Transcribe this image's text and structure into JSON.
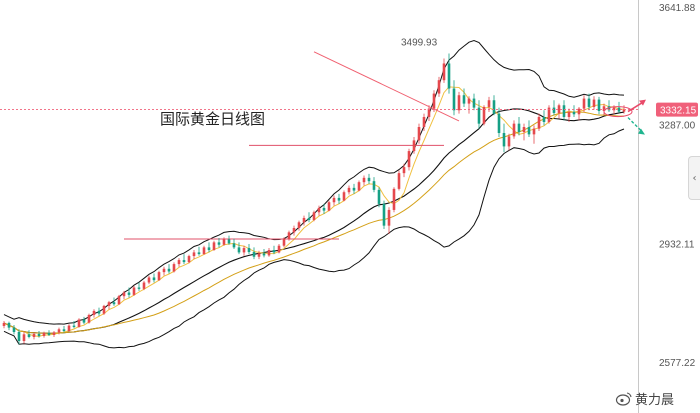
{
  "colors": {
    "up": "#e5484d",
    "down": "#16a085",
    "ma_short": "#f0c040",
    "ma_long": "#d4a017",
    "band": "#111111",
    "trendline": "#f06070",
    "support": "#e0506a",
    "arrow_up": "#e84b6a",
    "arrow_down": "#1fb58f",
    "price_tag": "#f0607a"
  },
  "watermark": "黄力晨",
  "side_button_icon": "chevron-left-icon",
  "chart_data": {
    "type": "candlestick",
    "title": "国际黄金日线图",
    "ylim": [
      2577.22,
      3641.88
    ],
    "y_ticks": [
      "3641.88",
      "3287.00",
      "2932.11",
      "2577.22"
    ],
    "y_tick_values": [
      3641.88,
      3287.0,
      2932.11,
      2577.22
    ],
    "current_price": {
      "label": "3332.15",
      "value": 3332.15
    },
    "high_annotation": {
      "label": "3499.93",
      "value": 3499.93
    },
    "support_levels": [
      {
        "value": 3225,
        "x_start": 0.49,
        "x_end": 0.88
      },
      {
        "value": 2945,
        "x_start": 0.24,
        "x_end": 0.67
      }
    ],
    "trendline": {
      "x_start": 0.62,
      "value_start": 3505,
      "x_end": 0.91,
      "value_end": 3298
    },
    "indicators": [
      "MA5",
      "MA10",
      "MA20",
      "Bollinger Bands"
    ],
    "ohlc_count": 125,
    "bars": [
      [
        0.0,
        2685,
        2700,
        2678,
        2694
      ],
      [
        0.01,
        2694,
        2698,
        2672,
        2680
      ],
      [
        0.02,
        2680,
        2688,
        2660,
        2667
      ],
      [
        0.03,
        2667,
        2675,
        2630,
        2640
      ],
      [
        0.04,
        2640,
        2668,
        2632,
        2660
      ],
      [
        0.05,
        2660,
        2672,
        2648,
        2652
      ],
      [
        0.06,
        2652,
        2665,
        2645,
        2661
      ],
      [
        0.07,
        2661,
        2670,
        2650,
        2655
      ],
      [
        0.08,
        2655,
        2668,
        2650,
        2664
      ],
      [
        0.09,
        2664,
        2672,
        2655,
        2658
      ],
      [
        0.1,
        2658,
        2670,
        2652,
        2666
      ],
      [
        0.11,
        2666,
        2680,
        2660,
        2675
      ],
      [
        0.12,
        2675,
        2685,
        2665,
        2670
      ],
      [
        0.13,
        2670,
        2690,
        2668,
        2686
      ],
      [
        0.14,
        2686,
        2700,
        2678,
        2682
      ],
      [
        0.15,
        2682,
        2708,
        2680,
        2704
      ],
      [
        0.16,
        2704,
        2712,
        2690,
        2695
      ],
      [
        0.17,
        2695,
        2722,
        2692,
        2718
      ],
      [
        0.18,
        2718,
        2735,
        2710,
        2730
      ],
      [
        0.19,
        2730,
        2740,
        2715,
        2722
      ],
      [
        0.2,
        2722,
        2748,
        2718,
        2745
      ],
      [
        0.21,
        2745,
        2760,
        2735,
        2756
      ],
      [
        0.22,
        2756,
        2770,
        2745,
        2750
      ],
      [
        0.23,
        2750,
        2778,
        2748,
        2774
      ],
      [
        0.24,
        2774,
        2790,
        2765,
        2785
      ],
      [
        0.25,
        2785,
        2800,
        2770,
        2778
      ],
      [
        0.26,
        2778,
        2805,
        2775,
        2800
      ],
      [
        0.27,
        2800,
        2815,
        2790,
        2796
      ],
      [
        0.28,
        2796,
        2820,
        2792,
        2815
      ],
      [
        0.29,
        2815,
        2835,
        2810,
        2830
      ],
      [
        0.3,
        2830,
        2842,
        2815,
        2822
      ],
      [
        0.31,
        2822,
        2850,
        2820,
        2846
      ],
      [
        0.32,
        2846,
        2862,
        2836,
        2856
      ],
      [
        0.33,
        2856,
        2870,
        2842,
        2848
      ],
      [
        0.34,
        2848,
        2875,
        2845,
        2870
      ],
      [
        0.35,
        2870,
        2888,
        2862,
        2882
      ],
      [
        0.36,
        2882,
        2900,
        2870,
        2876
      ],
      [
        0.37,
        2876,
        2898,
        2872,
        2894
      ],
      [
        0.38,
        2894,
        2912,
        2885,
        2905
      ],
      [
        0.39,
        2905,
        2922,
        2895,
        2900
      ],
      [
        0.4,
        2900,
        2925,
        2898,
        2920
      ],
      [
        0.41,
        2920,
        2935,
        2905,
        2912
      ],
      [
        0.42,
        2912,
        2940,
        2910,
        2935
      ],
      [
        0.43,
        2935,
        2948,
        2920,
        2928
      ],
      [
        0.44,
        2928,
        2950,
        2925,
        2944
      ],
      [
        0.45,
        2944,
        2955,
        2928,
        2932
      ],
      [
        0.46,
        2932,
        2946,
        2915,
        2920
      ],
      [
        0.47,
        2920,
        2935,
        2900,
        2905
      ],
      [
        0.48,
        2905,
        2925,
        2895,
        2918
      ],
      [
        0.49,
        2918,
        2930,
        2900,
        2906
      ],
      [
        0.5,
        2906,
        2920,
        2885,
        2892
      ],
      [
        0.51,
        2892,
        2910,
        2885,
        2902
      ],
      [
        0.52,
        2902,
        2915,
        2890,
        2896
      ],
      [
        0.53,
        2896,
        2918,
        2892,
        2912
      ],
      [
        0.54,
        2912,
        2925,
        2900,
        2905
      ],
      [
        0.55,
        2905,
        2930,
        2902,
        2925
      ],
      [
        0.56,
        2925,
        2950,
        2920,
        2945
      ],
      [
        0.57,
        2945,
        2970,
        2940,
        2965
      ],
      [
        0.58,
        2965,
        2985,
        2955,
        2978
      ],
      [
        0.59,
        2978,
        3000,
        2970,
        2995
      ],
      [
        0.6,
        2995,
        3015,
        2985,
        3008
      ],
      [
        0.61,
        3008,
        3025,
        2995,
        3002
      ],
      [
        0.62,
        3002,
        3030,
        2998,
        3025
      ],
      [
        0.63,
        3025,
        3045,
        3015,
        3038
      ],
      [
        0.64,
        3038,
        3050,
        3020,
        3030
      ],
      [
        0.65,
        3030,
        3060,
        3028,
        3055
      ],
      [
        0.66,
        3055,
        3075,
        3045,
        3068
      ],
      [
        0.67,
        3068,
        3080,
        3050,
        3060
      ],
      [
        0.68,
        3060,
        3090,
        3058,
        3085
      ],
      [
        0.69,
        3085,
        3105,
        3078,
        3098
      ],
      [
        0.7,
        3098,
        3110,
        3080,
        3090
      ],
      [
        0.71,
        3090,
        3120,
        3088,
        3115
      ],
      [
        0.72,
        3115,
        3135,
        3105,
        3128
      ],
      [
        0.73,
        3128,
        3140,
        3110,
        3118
      ],
      [
        0.74,
        3118,
        3130,
        3085,
        3092
      ],
      [
        0.75,
        3092,
        3100,
        3040,
        3050
      ],
      [
        0.76,
        3050,
        3060,
        2975,
        2985
      ],
      [
        0.77,
        2985,
        3040,
        2960,
        3032
      ],
      [
        0.78,
        3032,
        3100,
        3025,
        3095
      ],
      [
        0.79,
        3095,
        3150,
        3090,
        3142
      ],
      [
        0.8,
        3142,
        3170,
        3130,
        3160
      ],
      [
        0.81,
        3160,
        3215,
        3150,
        3208
      ],
      [
        0.82,
        3208,
        3250,
        3200,
        3240
      ],
      [
        0.83,
        3240,
        3290,
        3230,
        3280
      ],
      [
        0.84,
        3280,
        3320,
        3268,
        3310
      ],
      [
        0.85,
        3310,
        3345,
        3298,
        3335
      ],
      [
        0.86,
        3335,
        3390,
        3325,
        3380
      ],
      [
        0.87,
        3380,
        3430,
        3370,
        3420
      ],
      [
        0.88,
        3420,
        3485,
        3412,
        3470
      ],
      [
        0.89,
        3470,
        3500,
        3380,
        3395
      ],
      [
        0.9,
        3395,
        3420,
        3315,
        3330
      ],
      [
        0.91,
        3330,
        3385,
        3320,
        3375
      ],
      [
        0.92,
        3375,
        3395,
        3340,
        3350
      ],
      [
        0.93,
        3350,
        3372,
        3320,
        3365
      ],
      [
        0.94,
        3365,
        3380,
        3330,
        3338
      ],
      [
        0.95,
        3338,
        3360,
        3275,
        3290
      ],
      [
        0.96,
        3290,
        3345,
        3285,
        3340
      ],
      [
        0.97,
        3340,
        3370,
        3325,
        3360
      ],
      [
        0.98,
        3360,
        3375,
        3315,
        3320
      ],
      [
        0.99,
        3320,
        3338,
        3250,
        3262
      ],
      [
        1.0,
        3262,
        3290,
        3205,
        3222
      ],
      [
        1.01,
        3222,
        3260,
        3210,
        3252
      ],
      [
        1.02,
        3252,
        3300,
        3245,
        3290
      ],
      [
        1.03,
        3290,
        3310,
        3255,
        3265
      ],
      [
        1.04,
        3265,
        3290,
        3240,
        3280
      ],
      [
        1.05,
        3280,
        3300,
        3250,
        3258
      ],
      [
        1.06,
        3258,
        3285,
        3230,
        3275
      ],
      [
        1.07,
        3275,
        3320,
        3268,
        3310
      ],
      [
        1.08,
        3310,
        3330,
        3285,
        3295
      ],
      [
        1.09,
        3295,
        3345,
        3290,
        3338
      ],
      [
        1.1,
        3338,
        3360,
        3315,
        3322
      ],
      [
        1.11,
        3322,
        3350,
        3305,
        3345
      ],
      [
        1.12,
        3345,
        3360,
        3300,
        3310
      ],
      [
        1.13,
        3310,
        3335,
        3295,
        3325
      ],
      [
        1.14,
        3325,
        3345,
        3310,
        3318
      ],
      [
        1.15,
        3318,
        3340,
        3300,
        3335
      ],
      [
        1.16,
        3335,
        3375,
        3325,
        3365
      ],
      [
        1.17,
        3365,
        3380,
        3330,
        3340
      ],
      [
        1.18,
        3340,
        3372,
        3332,
        3362
      ],
      [
        1.19,
        3362,
        3370,
        3318,
        3328
      ],
      [
        1.2,
        3328,
        3350,
        3315,
        3342
      ],
      [
        1.21,
        3342,
        3360,
        3325,
        3330
      ],
      [
        1.22,
        3330,
        3345,
        3318,
        3338
      ],
      [
        1.23,
        3338,
        3355,
        3322,
        3326
      ],
      [
        1.24,
        3326,
        3345,
        3320,
        3332
      ]
    ]
  }
}
